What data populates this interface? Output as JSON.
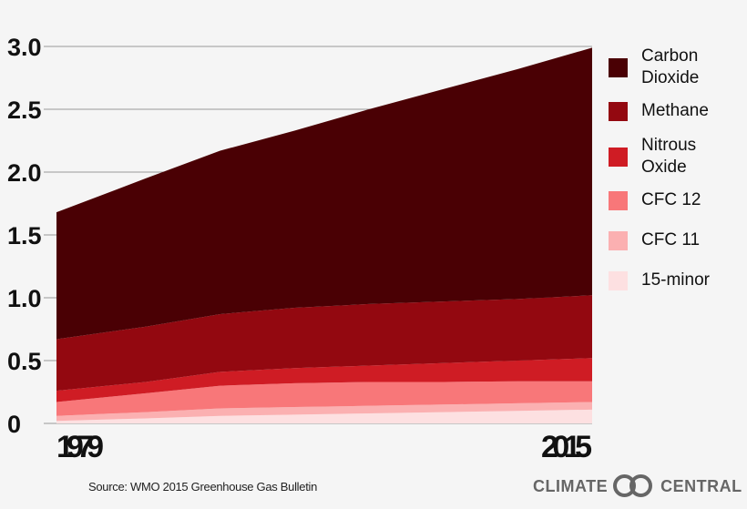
{
  "chart_data": {
    "type": "area",
    "stacked": true,
    "x": [
      1979,
      1985,
      1990,
      1995,
      2000,
      2005,
      2010,
      2015
    ],
    "xtick_labels": [
      "1979",
      "2015"
    ],
    "ylim": [
      0,
      3.0
    ],
    "yticks": [
      "0",
      "0.5",
      "1.0",
      "1.5",
      "2.0",
      "2.5",
      "3.0"
    ],
    "grid": true,
    "legend_placement": "right",
    "series": [
      {
        "name": "15-minor",
        "color": "#fde0e1",
        "values": [
          0.02,
          0.04,
          0.06,
          0.07,
          0.08,
          0.09,
          0.1,
          0.11
        ]
      },
      {
        "name": "CFC 11",
        "color": "#fbb0b1",
        "values": [
          0.04,
          0.05,
          0.06,
          0.06,
          0.06,
          0.06,
          0.06,
          0.06
        ]
      },
      {
        "name": "CFC 12",
        "color": "#f87779",
        "values": [
          0.11,
          0.15,
          0.18,
          0.19,
          0.19,
          0.18,
          0.175,
          0.165
        ]
      },
      {
        "name": "Nitrous Oxide",
        "color": "#cf1c24",
        "values": [
          0.09,
          0.09,
          0.11,
          0.12,
          0.13,
          0.15,
          0.165,
          0.185
        ]
      },
      {
        "name": "Methane",
        "color": "#930810",
        "values": [
          0.41,
          0.44,
          0.46,
          0.48,
          0.49,
          0.49,
          0.49,
          0.5
        ]
      },
      {
        "name": "Carbon Dioxide",
        "color": "#4a0004",
        "values": [
          1.01,
          1.18,
          1.3,
          1.41,
          1.55,
          1.69,
          1.83,
          1.97
        ]
      }
    ]
  },
  "legend": [
    {
      "label": "Carbon Dioxide",
      "color": "#4a0004"
    },
    {
      "label": "Methane",
      "color": "#930810"
    },
    {
      "label": "Nitrous Oxide",
      "color": "#cf1c24"
    },
    {
      "label": "CFC 12",
      "color": "#f87779"
    },
    {
      "label": "CFC 11",
      "color": "#fbb0b1"
    },
    {
      "label": "15-minor",
      "color": "#fde0e1"
    }
  ],
  "source": "Source: WMO 2015 Greenhouse Gas Bulletin",
  "logo": {
    "left": "CLIMATE",
    "right": "CENTRAL"
  }
}
